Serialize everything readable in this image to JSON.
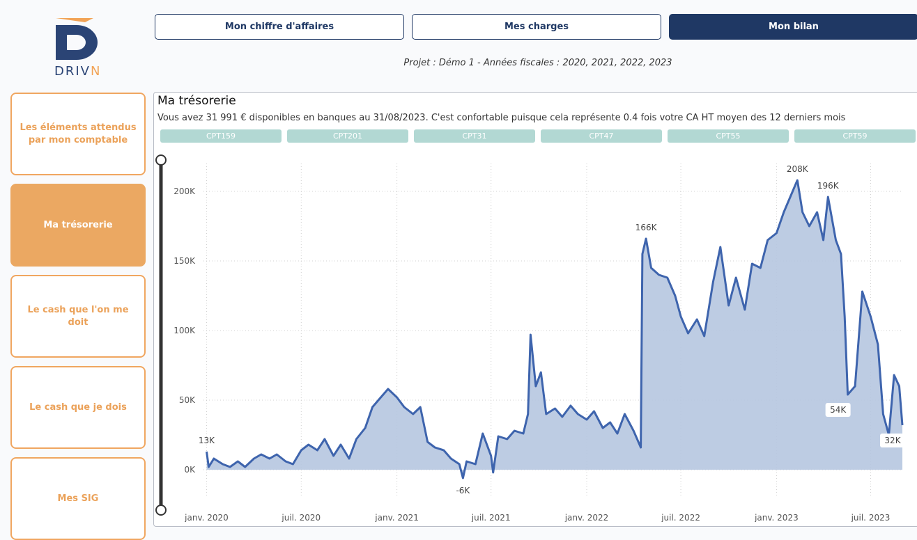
{
  "brand": {
    "name_main": "DRIV",
    "name_accent": "N",
    "primary": "#2b4475",
    "accent": "#f2a356"
  },
  "topnav": [
    {
      "label": "Mon chiffre d'affaires",
      "active": false
    },
    {
      "label": "Mes charges",
      "active": false
    },
    {
      "label": "Mon bilan",
      "active": true
    }
  ],
  "subtitle": "Projet : Démo 1 - Années fiscales : 2020, 2021, 2022, 2023",
  "sidebar": [
    {
      "label": "Les éléments attendus par mon comptable",
      "active": false
    },
    {
      "label": "Ma trésorerie",
      "active": true
    },
    {
      "label": "Le cash que l'on me doit",
      "active": false
    },
    {
      "label": "Le cash que je dois",
      "active": false
    },
    {
      "label": "Mes SIG",
      "active": false
    }
  ],
  "panel": {
    "title": "Ma trésorerie",
    "description": "Vous avez 31 991 € disponibles en banques au 31/08/2023. C'est confortable puisque cela représente 0.4 fois votre CA HT moyen des 12 derniers mois"
  },
  "accounts": [
    "CPT159",
    "CPT201",
    "CPT31",
    "CPT47",
    "CPT55",
    "CPT59"
  ],
  "chart_data": {
    "type": "area",
    "line_color": "#3e64ad",
    "fill_color": "#b6c6e0",
    "ylim": [
      -20000,
      225000
    ],
    "yticks": [
      {
        "value": 0,
        "label": "0K"
      },
      {
        "value": 50000,
        "label": "50K"
      },
      {
        "value": 100000,
        "label": "100K"
      },
      {
        "value": 150000,
        "label": "150K"
      },
      {
        "value": 200000,
        "label": "200K"
      }
    ],
    "xlim": [
      "2019-12-26",
      "2023-08-31"
    ],
    "xticks": [
      {
        "date": "2020-01-01",
        "label": "janv. 2020"
      },
      {
        "date": "2020-07-01",
        "label": "juil. 2020"
      },
      {
        "date": "2021-01-01",
        "label": "janv. 2021"
      },
      {
        "date": "2021-07-01",
        "label": "juil. 2021"
      },
      {
        "date": "2022-01-01",
        "label": "janv. 2022"
      },
      {
        "date": "2022-07-01",
        "label": "juil. 2022"
      },
      {
        "date": "2023-01-01",
        "label": "janv. 2023"
      },
      {
        "date": "2023-07-01",
        "label": "juil. 2023"
      }
    ],
    "points": [
      [
        "2020-01-01",
        13000
      ],
      [
        "2020-01-05",
        2000
      ],
      [
        "2020-01-15",
        8000
      ],
      [
        "2020-02-01",
        4000
      ],
      [
        "2020-02-15",
        2000
      ],
      [
        "2020-03-01",
        6000
      ],
      [
        "2020-03-15",
        2000
      ],
      [
        "2020-04-01",
        8000
      ],
      [
        "2020-04-15",
        11000
      ],
      [
        "2020-05-01",
        8000
      ],
      [
        "2020-05-15",
        11000
      ],
      [
        "2020-06-01",
        6000
      ],
      [
        "2020-06-15",
        4000
      ],
      [
        "2020-07-01",
        14000
      ],
      [
        "2020-07-15",
        18000
      ],
      [
        "2020-08-01",
        14000
      ],
      [
        "2020-08-15",
        22000
      ],
      [
        "2020-09-01",
        10000
      ],
      [
        "2020-09-15",
        18000
      ],
      [
        "2020-10-01",
        8000
      ],
      [
        "2020-10-15",
        22000
      ],
      [
        "2020-11-01",
        30000
      ],
      [
        "2020-11-15",
        45000
      ],
      [
        "2020-12-01",
        52000
      ],
      [
        "2020-12-15",
        58000
      ],
      [
        "2021-01-01",
        52000
      ],
      [
        "2021-01-15",
        45000
      ],
      [
        "2021-02-01",
        40000
      ],
      [
        "2021-02-15",
        45000
      ],
      [
        "2021-03-01",
        20000
      ],
      [
        "2021-03-15",
        16000
      ],
      [
        "2021-04-01",
        14000
      ],
      [
        "2021-04-15",
        8000
      ],
      [
        "2021-05-01",
        4000
      ],
      [
        "2021-05-08",
        -6000
      ],
      [
        "2021-05-15",
        6000
      ],
      [
        "2021-06-01",
        4000
      ],
      [
        "2021-06-15",
        26000
      ],
      [
        "2021-07-01",
        10000
      ],
      [
        "2021-07-05",
        -2000
      ],
      [
        "2021-07-15",
        24000
      ],
      [
        "2021-08-01",
        22000
      ],
      [
        "2021-08-15",
        28000
      ],
      [
        "2021-09-01",
        26000
      ],
      [
        "2021-09-10",
        40000
      ],
      [
        "2021-09-15",
        97000
      ],
      [
        "2021-09-25",
        60000
      ],
      [
        "2021-10-05",
        70000
      ],
      [
        "2021-10-15",
        40000
      ],
      [
        "2021-11-01",
        44000
      ],
      [
        "2021-11-15",
        38000
      ],
      [
        "2021-12-01",
        46000
      ],
      [
        "2021-12-15",
        40000
      ],
      [
        "2022-01-01",
        36000
      ],
      [
        "2022-01-15",
        42000
      ],
      [
        "2022-02-01",
        30000
      ],
      [
        "2022-02-15",
        34000
      ],
      [
        "2022-03-01",
        26000
      ],
      [
        "2022-03-15",
        40000
      ],
      [
        "2022-04-01",
        28000
      ],
      [
        "2022-04-15",
        16000
      ],
      [
        "2022-04-18",
        155000
      ],
      [
        "2022-04-25",
        166000
      ],
      [
        "2022-05-05",
        145000
      ],
      [
        "2022-05-20",
        140000
      ],
      [
        "2022-06-05",
        138000
      ],
      [
        "2022-06-20",
        125000
      ],
      [
        "2022-07-01",
        110000
      ],
      [
        "2022-07-15",
        98000
      ],
      [
        "2022-08-01",
        108000
      ],
      [
        "2022-08-15",
        96000
      ],
      [
        "2022-09-01",
        135000
      ],
      [
        "2022-09-15",
        160000
      ],
      [
        "2022-10-01",
        118000
      ],
      [
        "2022-10-15",
        138000
      ],
      [
        "2022-11-01",
        115000
      ],
      [
        "2022-11-15",
        148000
      ],
      [
        "2022-12-01",
        145000
      ],
      [
        "2022-12-15",
        165000
      ],
      [
        "2023-01-01",
        170000
      ],
      [
        "2023-01-15",
        185000
      ],
      [
        "2023-02-01",
        200000
      ],
      [
        "2023-02-10",
        208000
      ],
      [
        "2023-02-20",
        185000
      ],
      [
        "2023-03-05",
        175000
      ],
      [
        "2023-03-20",
        185000
      ],
      [
        "2023-04-01",
        165000
      ],
      [
        "2023-04-10",
        196000
      ],
      [
        "2023-04-25",
        165000
      ],
      [
        "2023-05-05",
        155000
      ],
      [
        "2023-05-12",
        110000
      ],
      [
        "2023-05-18",
        54000
      ],
      [
        "2023-06-01",
        60000
      ],
      [
        "2023-06-15",
        128000
      ],
      [
        "2023-07-01",
        110000
      ],
      [
        "2023-07-15",
        90000
      ],
      [
        "2023-07-25",
        40000
      ],
      [
        "2023-08-05",
        25000
      ],
      [
        "2023-08-15",
        68000
      ],
      [
        "2023-08-25",
        60000
      ],
      [
        "2023-08-31",
        32000
      ]
    ],
    "labels": [
      {
        "date": "2020-01-01",
        "value": 13000,
        "text": "13K",
        "pos": "above"
      },
      {
        "date": "2021-05-08",
        "value": -6000,
        "text": "-6K",
        "pos": "below"
      },
      {
        "date": "2022-04-25",
        "value": 166000,
        "text": "166K",
        "pos": "above"
      },
      {
        "date": "2023-02-10",
        "value": 208000,
        "text": "208K",
        "pos": "above"
      },
      {
        "date": "2023-04-10",
        "value": 196000,
        "text": "196K",
        "pos": "above"
      },
      {
        "date": "2023-05-18",
        "value": 54000,
        "text": "54K",
        "pos": "box"
      },
      {
        "date": "2023-08-31",
        "value": 32000,
        "text": "32K",
        "pos": "box"
      }
    ]
  }
}
